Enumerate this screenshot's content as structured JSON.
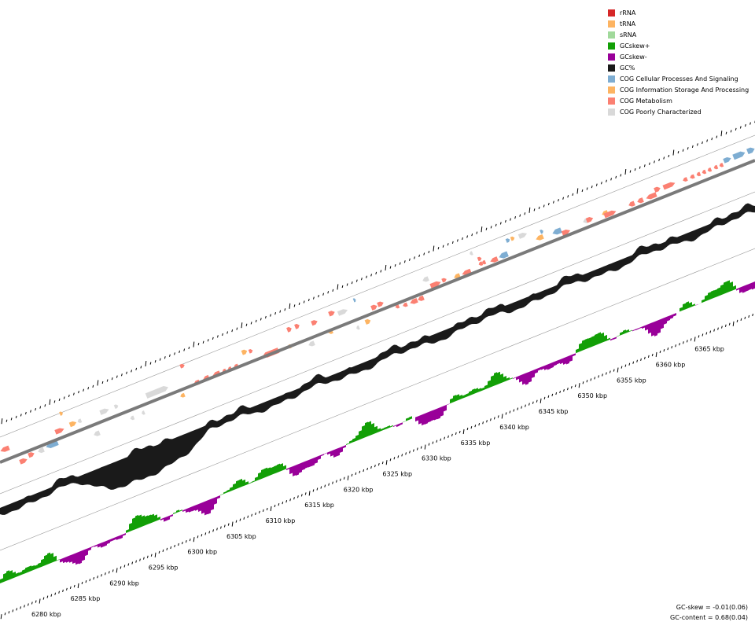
{
  "legend": [
    {
      "label": "rRNA",
      "color": "#d62728"
    },
    {
      "label": "tRNA",
      "color": "#fdb462"
    },
    {
      "label": "sRNA",
      "color": "#a1d99b"
    },
    {
      "label": "GCskew+",
      "color": "#129f06"
    },
    {
      "label": "GCskew-",
      "color": "#990099"
    },
    {
      "label": "GC%",
      "color": "#1a1a1a"
    },
    {
      "label": "COG Cellular Processes And Signaling",
      "color": "#7eadd2"
    },
    {
      "label": "COG Information Storage And Processing",
      "color": "#fdb462"
    },
    {
      "label": "COG Metabolism",
      "color": "#fb8072"
    },
    {
      "label": "COG Poorly Characterized",
      "color": "#d9d9d9"
    }
  ],
  "axis": {
    "unit": "kbp",
    "labels": [
      "6280 kbp",
      "6285 kbp",
      "6290 kbp",
      "6295 kbp",
      "6300 kbp",
      "6305 kbp",
      "6310 kbp",
      "6315 kbp",
      "6320 kbp",
      "6325 kbp",
      "6330 kbp",
      "6335 kbp",
      "6340 kbp",
      "6345 kbp",
      "6350 kbp",
      "6355 kbp",
      "6360 kbp",
      "6365 kbp"
    ]
  },
  "stats": {
    "gc_skew": "GC-skew = -0.01(0.06)",
    "gc_content": "GC-content = 0.68(0.04)"
  },
  "colors": {
    "backbone": "#7a7a7a",
    "guide": "#9a9a9a",
    "ticks": "#000000"
  }
}
